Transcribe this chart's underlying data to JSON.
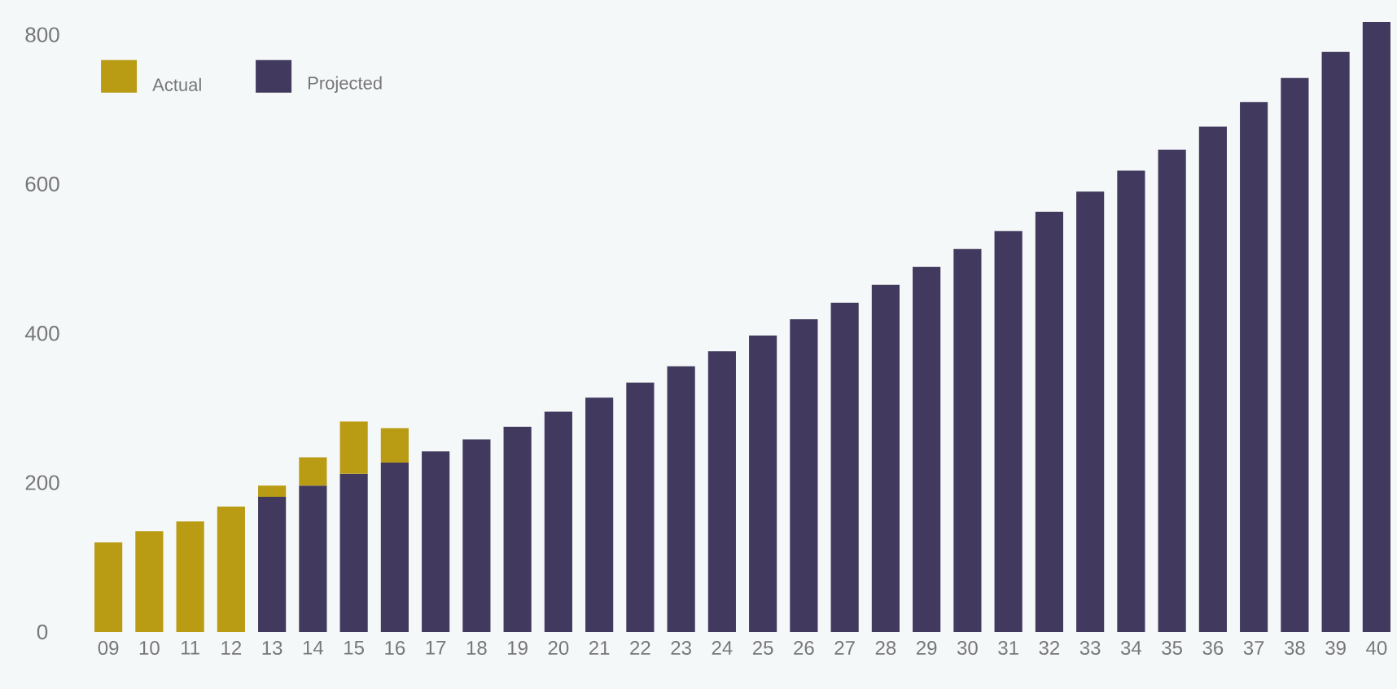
{
  "chart_data": {
    "type": "bar",
    "stacked": true,
    "categories": [
      "09",
      "10",
      "11",
      "12",
      "13",
      "14",
      "15",
      "16",
      "17",
      "18",
      "19",
      "20",
      "21",
      "22",
      "23",
      "24",
      "25",
      "26",
      "27",
      "28",
      "29",
      "30",
      "31",
      "32",
      "33",
      "34",
      "35",
      "36",
      "37",
      "38",
      "39",
      "40"
    ],
    "series": [
      {
        "name": "Projected",
        "color": "#423a5e",
        "values": [
          null,
          null,
          null,
          null,
          181,
          196,
          212,
          227,
          242,
          258,
          275,
          295,
          314,
          334,
          356,
          376,
          397,
          419,
          441,
          465,
          489,
          513,
          537,
          563,
          590,
          618,
          646,
          677,
          710,
          742,
          777,
          817
        ]
      },
      {
        "name": "Actual",
        "color": "#b99c14",
        "values": [
          120,
          135,
          148,
          168,
          15,
          38,
          70,
          46,
          null,
          null,
          null,
          null,
          null,
          null,
          null,
          null,
          null,
          null,
          null,
          null,
          null,
          null,
          null,
          null,
          null,
          null,
          null,
          null,
          null,
          null,
          null,
          null
        ]
      }
    ],
    "ylim": [
      0,
      840
    ],
    "yticks": [
      0,
      200,
      400,
      600,
      800
    ],
    "legend": "top left"
  }
}
